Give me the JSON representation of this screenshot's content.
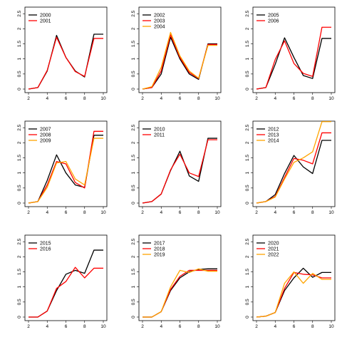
{
  "figure": {
    "series_colors": {
      "first": "#000000",
      "second": "#ff0000",
      "third": "#ffa500"
    }
  },
  "chart_data": [
    {
      "type": "line",
      "x": [
        2,
        3,
        4,
        5,
        6,
        7,
        8,
        9,
        10
      ],
      "ylim": [
        0,
        2.6
      ],
      "xlim": [
        2,
        10
      ],
      "xticks": [
        2,
        4,
        6,
        8,
        10
      ],
      "yticks": [
        0,
        0.5,
        1,
        1.5,
        2,
        2.5
      ],
      "legend_position": "top-left",
      "series": [
        {
          "name": "2000",
          "color": "#000000",
          "values": [
            0,
            0.05,
            0.6,
            1.78,
            1.05,
            0.6,
            0.4,
            1.82,
            1.82
          ]
        },
        {
          "name": "2001",
          "color": "#ff0000",
          "values": [
            0,
            0.05,
            0.62,
            1.72,
            1.05,
            0.58,
            0.42,
            1.68,
            1.68
          ]
        }
      ]
    },
    {
      "type": "line",
      "x": [
        2,
        3,
        4,
        5,
        6,
        7,
        8,
        9,
        10
      ],
      "ylim": [
        0,
        2.6
      ],
      "xlim": [
        2,
        10
      ],
      "xticks": [
        2,
        4,
        6,
        8,
        10
      ],
      "yticks": [
        0,
        0.5,
        1,
        1.5,
        2,
        2.5
      ],
      "legend_position": "top-left",
      "series": [
        {
          "name": "2002",
          "color": "#000000",
          "values": [
            0,
            0.05,
            0.5,
            1.72,
            1.0,
            0.5,
            0.32,
            1.5,
            1.5
          ]
        },
        {
          "name": "2003",
          "color": "#ff0000",
          "values": [
            0,
            0.05,
            0.6,
            1.8,
            1.05,
            0.55,
            0.35,
            1.48,
            1.48
          ]
        },
        {
          "name": "2004",
          "color": "#ffa500",
          "values": [
            0,
            0.08,
            0.72,
            1.88,
            1.1,
            0.6,
            0.36,
            1.45,
            1.45
          ]
        }
      ]
    },
    {
      "type": "line",
      "x": [
        2,
        3,
        4,
        5,
        6,
        7,
        8,
        9,
        10
      ],
      "ylim": [
        0,
        2.6
      ],
      "xlim": [
        2,
        10
      ],
      "xticks": [
        2,
        4,
        6,
        8,
        10
      ],
      "yticks": [
        0,
        0.5,
        1,
        1.5,
        2,
        2.5
      ],
      "legend_position": "top-left",
      "series": [
        {
          "name": "2005",
          "color": "#000000",
          "values": [
            0,
            0.05,
            0.82,
            1.7,
            1.05,
            0.45,
            0.35,
            1.68,
            1.68
          ]
        },
        {
          "name": "2006",
          "color": "#ff0000",
          "values": [
            0,
            0.05,
            0.98,
            1.6,
            0.85,
            0.52,
            0.42,
            2.05,
            2.05
          ]
        }
      ]
    },
    {
      "type": "line",
      "x": [
        2,
        3,
        4,
        5,
        6,
        7,
        8,
        9,
        10
      ],
      "ylim": [
        0,
        2.6
      ],
      "xlim": [
        2,
        10
      ],
      "xticks": [
        2,
        4,
        6,
        8,
        10
      ],
      "yticks": [
        0,
        0.5,
        1,
        1.5,
        2,
        2.5
      ],
      "legend_position": "top-left",
      "series": [
        {
          "name": "2007",
          "color": "#000000",
          "values": [
            0,
            0.05,
            0.75,
            1.6,
            1.0,
            0.6,
            0.52,
            2.25,
            2.25
          ]
        },
        {
          "name": "2008",
          "color": "#ff0000",
          "values": [
            0,
            0.05,
            0.6,
            1.38,
            1.3,
            0.68,
            0.5,
            2.38,
            2.38
          ]
        },
        {
          "name": "2009",
          "color": "#ffa500",
          "values": [
            0,
            0.05,
            0.52,
            1.33,
            1.38,
            0.8,
            0.6,
            2.15,
            2.15
          ]
        }
      ]
    },
    {
      "type": "line",
      "x": [
        2,
        3,
        4,
        5,
        6,
        7,
        8,
        9,
        10
      ],
      "ylim": [
        0,
        2.6
      ],
      "xlim": [
        2,
        10
      ],
      "xticks": [
        2,
        4,
        6,
        8,
        10
      ],
      "yticks": [
        0,
        0.5,
        1,
        1.5,
        2,
        2.5
      ],
      "legend_position": "top-left",
      "series": [
        {
          "name": "2010",
          "color": "#000000",
          "values": [
            0,
            0.05,
            0.3,
            1.08,
            1.72,
            0.9,
            0.72,
            2.15,
            2.15
          ]
        },
        {
          "name": "2011",
          "color": "#ff0000",
          "values": [
            0,
            0.05,
            0.3,
            1.1,
            1.62,
            1.0,
            0.88,
            2.1,
            2.1
          ]
        }
      ]
    },
    {
      "type": "line",
      "x": [
        2,
        3,
        4,
        5,
        6,
        7,
        8,
        9,
        10
      ],
      "ylim": [
        0,
        2.6
      ],
      "xlim": [
        2,
        10
      ],
      "xticks": [
        2,
        4,
        6,
        8,
        10
      ],
      "yticks": [
        0,
        0.5,
        1,
        1.5,
        2,
        2.5
      ],
      "legend_position": "top-left",
      "series": [
        {
          "name": "2012",
          "color": "#000000",
          "values": [
            0,
            0.05,
            0.28,
            0.98,
            1.58,
            1.2,
            0.98,
            2.08,
            2.08
          ]
        },
        {
          "name": "2013",
          "color": "#ff0000",
          "values": [
            0,
            0.05,
            0.22,
            0.85,
            1.48,
            1.42,
            1.3,
            2.33,
            2.33
          ]
        },
        {
          "name": "2014",
          "color": "#ffa500",
          "values": [
            0,
            0.05,
            0.2,
            0.8,
            1.35,
            1.5,
            1.7,
            2.7,
            2.7
          ]
        }
      ]
    },
    {
      "type": "line",
      "x": [
        2,
        3,
        4,
        5,
        6,
        7,
        8,
        9,
        10
      ],
      "ylim": [
        0,
        2.6
      ],
      "xlim": [
        2,
        10
      ],
      "xticks": [
        2,
        4,
        6,
        8,
        10
      ],
      "yticks": [
        0,
        0.5,
        1,
        1.5,
        2,
        2.5
      ],
      "legend_position": "top-left",
      "series": [
        {
          "name": "2015",
          "color": "#000000",
          "values": [
            0,
            0,
            0.2,
            0.88,
            1.42,
            1.55,
            1.45,
            2.22,
            2.22
          ]
        },
        {
          "name": "2016",
          "color": "#ff0000",
          "values": [
            0,
            0,
            0.2,
            0.95,
            1.18,
            1.65,
            1.3,
            1.62,
            1.62
          ]
        }
      ]
    },
    {
      "type": "line",
      "x": [
        2,
        3,
        4,
        5,
        6,
        7,
        8,
        9,
        10
      ],
      "ylim": [
        0,
        2.6
      ],
      "xlim": [
        2,
        10
      ],
      "xticks": [
        2,
        4,
        6,
        8,
        10
      ],
      "yticks": [
        0,
        0.5,
        1,
        1.5,
        2,
        2.5
      ],
      "legend_position": "top-left",
      "series": [
        {
          "name": "2017",
          "color": "#000000",
          "values": [
            0,
            0,
            0.18,
            0.88,
            1.3,
            1.5,
            1.58,
            1.6,
            1.6
          ]
        },
        {
          "name": "2018",
          "color": "#ff0000",
          "values": [
            0,
            0,
            0.18,
            0.92,
            1.35,
            1.55,
            1.55,
            1.55,
            1.55
          ]
        },
        {
          "name": "2019",
          "color": "#ffa500",
          "values": [
            0,
            0,
            0.18,
            1.0,
            1.55,
            1.48,
            1.6,
            1.52,
            1.52
          ]
        }
      ]
    },
    {
      "type": "line",
      "x": [
        2,
        3,
        4,
        5,
        6,
        7,
        8,
        9,
        10
      ],
      "ylim": [
        0,
        2.6
      ],
      "xlim": [
        2,
        10
      ],
      "xticks": [
        2,
        4,
        6,
        8,
        10
      ],
      "yticks": [
        0,
        0.5,
        1,
        1.5,
        2,
        2.5
      ],
      "legend_position": "top-left",
      "series": [
        {
          "name": "2020",
          "color": "#000000",
          "values": [
            0,
            0.03,
            0.15,
            0.88,
            1.3,
            1.62,
            1.32,
            1.48,
            1.48
          ]
        },
        {
          "name": "2021",
          "color": "#ff0000",
          "values": [
            0,
            0.03,
            0.15,
            0.95,
            1.48,
            1.42,
            1.4,
            1.3,
            1.3
          ]
        },
        {
          "name": "2022",
          "color": "#ffa500",
          "values": [
            0,
            0.03,
            0.15,
            1.12,
            1.5,
            1.12,
            1.45,
            1.25,
            1.25
          ]
        }
      ]
    }
  ]
}
